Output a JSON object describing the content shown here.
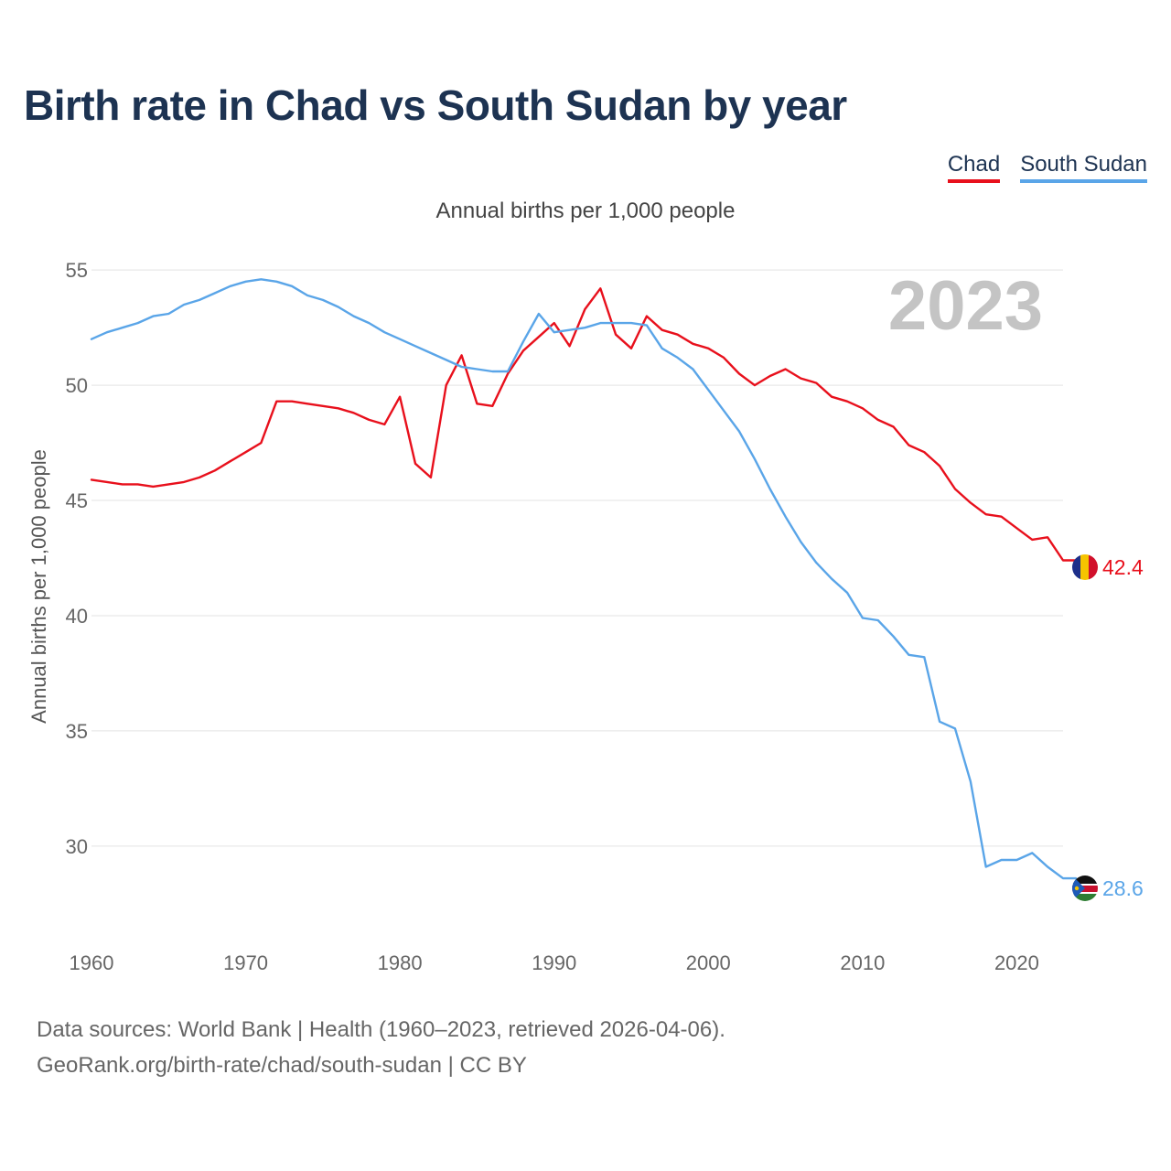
{
  "title": "Birth rate in Chad vs South Sudan by year",
  "legend": [
    {
      "name": "Chad",
      "color": "#e8101c"
    },
    {
      "name": "South Sudan",
      "color": "#5aa5e8"
    }
  ],
  "footer": {
    "line1": "Data sources: World Bank | Health (1960–2023, retrieved 2026-04-06).",
    "line2": "GeoRank.org/birth-rate/chad/south-sudan | CC BY"
  },
  "chart_data": {
    "type": "line",
    "title": "Birth rate in Chad vs South Sudan by year",
    "subtitle": "Annual births per 1,000 people",
    "xlabel": "",
    "ylabel": "Annual births per 1,000 people",
    "watermark_year": "2023",
    "xlim": [
      1960,
      2023
    ],
    "ylim": [
      26.5,
      56
    ],
    "x_ticks": [
      1960,
      1970,
      1980,
      1990,
      2000,
      2010,
      2020
    ],
    "y_ticks": [
      30,
      35,
      40,
      45,
      50,
      55
    ],
    "grid": true,
    "x": [
      1960,
      1961,
      1962,
      1963,
      1964,
      1965,
      1966,
      1967,
      1968,
      1969,
      1970,
      1971,
      1972,
      1973,
      1974,
      1975,
      1976,
      1977,
      1978,
      1979,
      1980,
      1981,
      1982,
      1983,
      1984,
      1985,
      1986,
      1987,
      1988,
      1989,
      1990,
      1991,
      1992,
      1993,
      1994,
      1995,
      1996,
      1997,
      1998,
      1999,
      2000,
      2001,
      2002,
      2003,
      2004,
      2005,
      2006,
      2007,
      2008,
      2009,
      2010,
      2011,
      2012,
      2013,
      2014,
      2015,
      2016,
      2017,
      2018,
      2019,
      2020,
      2021,
      2022,
      2023
    ],
    "series": [
      {
        "name": "Chad",
        "color": "#e8101c",
        "end_label": "42.4",
        "values": [
          45.9,
          45.8,
          45.7,
          45.7,
          45.6,
          45.7,
          45.8,
          46.0,
          46.3,
          46.7,
          47.1,
          47.5,
          49.3,
          49.3,
          49.2,
          49.1,
          49.0,
          48.8,
          48.5,
          48.3,
          49.5,
          46.6,
          46.0,
          50.0,
          51.3,
          49.2,
          49.1,
          50.5,
          51.5,
          52.1,
          52.7,
          51.7,
          53.3,
          54.2,
          52.2,
          51.6,
          53.0,
          52.4,
          52.2,
          51.8,
          51.6,
          51.2,
          50.5,
          50.0,
          50.4,
          50.7,
          50.3,
          50.1,
          49.5,
          49.3,
          49.0,
          48.5,
          48.2,
          47.4,
          47.1,
          46.5,
          45.5,
          44.9,
          44.4,
          44.3,
          43.8,
          43.3,
          43.4,
          42.4
        ]
      },
      {
        "name": "South Sudan",
        "color": "#5aa5e8",
        "end_label": "28.6",
        "values": [
          52.0,
          52.3,
          52.5,
          52.7,
          53.0,
          53.1,
          53.5,
          53.7,
          54.0,
          54.3,
          54.5,
          54.6,
          54.5,
          54.3,
          53.9,
          53.7,
          53.4,
          53.0,
          52.7,
          52.3,
          52.0,
          51.7,
          51.4,
          51.1,
          50.8,
          50.7,
          50.6,
          50.6,
          51.9,
          53.1,
          52.3,
          52.4,
          52.5,
          52.7,
          52.7,
          52.7,
          52.6,
          51.6,
          51.2,
          50.7,
          49.8,
          48.9,
          48.0,
          46.8,
          45.5,
          44.3,
          43.2,
          42.3,
          41.6,
          41.0,
          39.9,
          39.8,
          39.1,
          38.3,
          38.2,
          35.4,
          35.1,
          32.8,
          29.1,
          29.4,
          29.4,
          29.7,
          29.1,
          28.6
        ]
      }
    ]
  }
}
